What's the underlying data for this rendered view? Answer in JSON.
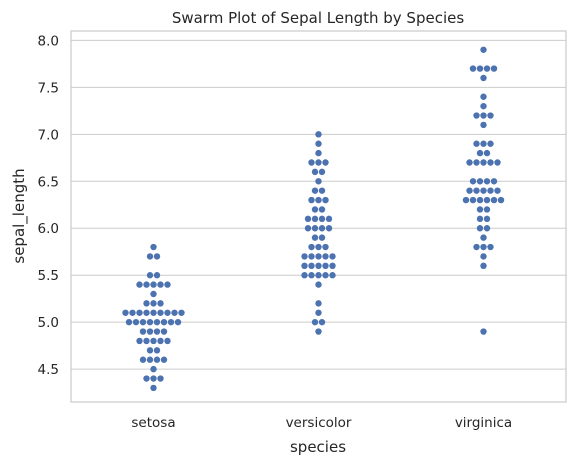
{
  "chart_data": {
    "type": "scatter",
    "subtype": "swarm",
    "title": "Swarm Plot of Sepal Length by Species",
    "xlabel": "species",
    "ylabel": "sepal_length",
    "categories": [
      "setosa",
      "versicolor",
      "virginica"
    ],
    "ylim": [
      4.15,
      8.1
    ],
    "yticks": [
      "4.5",
      "5.0",
      "5.5",
      "6.0",
      "6.5",
      "7.0",
      "7.5",
      "8.0"
    ],
    "grid": true,
    "grid_axis": "y",
    "point_color": "#4c72b0",
    "background": "#ffffff",
    "series": [
      {
        "values": [
          4.3,
          4.4,
          4.4,
          4.4,
          4.5,
          4.6,
          4.6,
          4.6,
          4.6,
          4.7,
          4.7,
          4.8,
          4.8,
          4.8,
          4.8,
          4.8,
          4.9,
          4.9,
          4.9,
          4.9,
          5.0,
          5.0,
          5.0,
          5.0,
          5.0,
          5.0,
          5.0,
          5.0,
          5.1,
          5.1,
          5.1,
          5.1,
          5.1,
          5.1,
          5.1,
          5.1,
          5.1,
          5.2,
          5.2,
          5.2,
          5.3,
          5.4,
          5.4,
          5.4,
          5.4,
          5.4,
          5.5,
          5.5,
          5.7,
          5.7,
          5.8
        ]
      },
      {
        "values": [
          4.9,
          5.0,
          5.0,
          5.1,
          5.2,
          5.4,
          5.5,
          5.5,
          5.5,
          5.5,
          5.5,
          5.6,
          5.6,
          5.6,
          5.6,
          5.6,
          5.7,
          5.7,
          5.7,
          5.7,
          5.7,
          5.8,
          5.8,
          5.8,
          5.9,
          5.9,
          6.0,
          6.0,
          6.0,
          6.0,
          6.1,
          6.1,
          6.1,
          6.1,
          6.2,
          6.2,
          6.3,
          6.3,
          6.3,
          6.4,
          6.4,
          6.5,
          6.6,
          6.6,
          6.7,
          6.7,
          6.7,
          6.8,
          6.9,
          7.0
        ]
      },
      {
        "values": [
          4.9,
          5.6,
          5.7,
          5.8,
          5.8,
          5.8,
          5.9,
          6.0,
          6.0,
          6.1,
          6.1,
          6.2,
          6.2,
          6.3,
          6.3,
          6.3,
          6.3,
          6.3,
          6.3,
          6.4,
          6.4,
          6.4,
          6.4,
          6.4,
          6.5,
          6.5,
          6.5,
          6.5,
          6.7,
          6.7,
          6.7,
          6.7,
          6.7,
          6.8,
          6.8,
          6.9,
          6.9,
          6.9,
          7.1,
          7.2,
          7.2,
          7.2,
          7.3,
          7.4,
          7.6,
          7.7,
          7.7,
          7.7,
          7.7,
          7.9
        ]
      }
    ]
  }
}
